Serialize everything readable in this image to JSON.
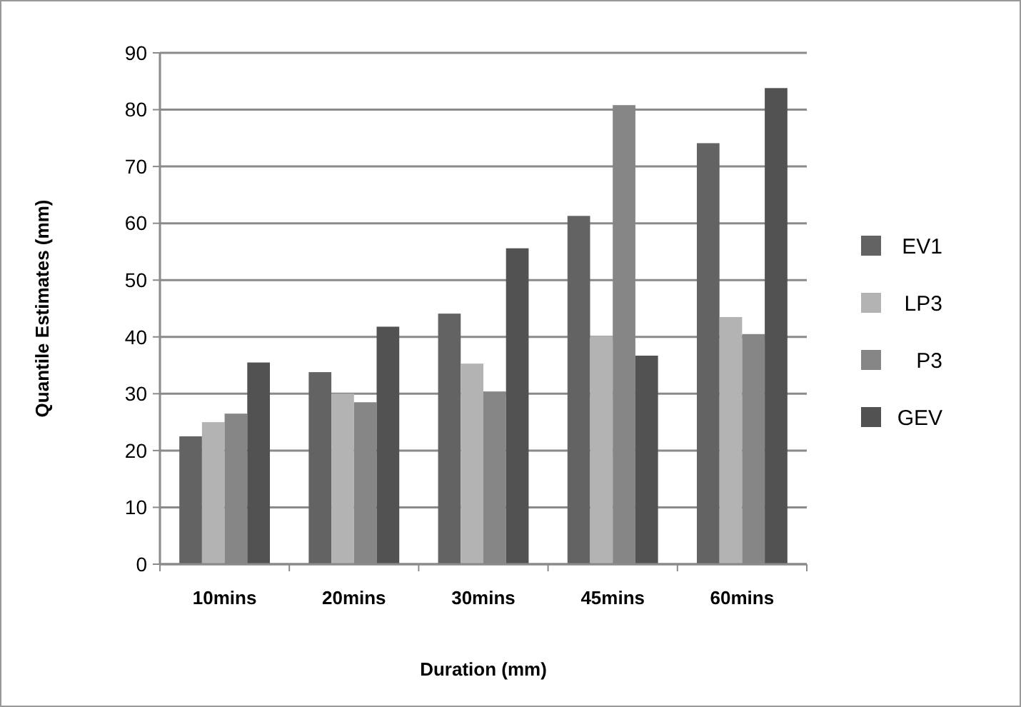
{
  "chart_data": {
    "type": "bar",
    "xlabel": "Duration (mm)",
    "ylabel": "Quantile Estimates (mm)",
    "categories": [
      "10mins",
      "20mins",
      "30mins",
      "45mins",
      "60mins"
    ],
    "series": [
      {
        "name": "EV1",
        "color": "#636363",
        "values": [
          22.5,
          33.8,
          44.1,
          61.3,
          74.1
        ]
      },
      {
        "name": "LP3",
        "color": "#b3b3b3",
        "values": [
          25,
          30,
          35.3,
          40.1,
          43.5
        ]
      },
      {
        "name": "P3",
        "color": "#868686",
        "values": [
          26.5,
          28.5,
          30.4,
          80.8,
          40.5
        ]
      },
      {
        "name": "GEV",
        "color": "#525252",
        "values": [
          35.5,
          41.8,
          55.6,
          36.7,
          83.8
        ]
      }
    ],
    "ylim": [
      0,
      90
    ],
    "yticks": [
      0,
      10,
      20,
      30,
      40,
      50,
      60,
      70,
      80,
      90
    ],
    "grid": "y",
    "legend": "right"
  }
}
